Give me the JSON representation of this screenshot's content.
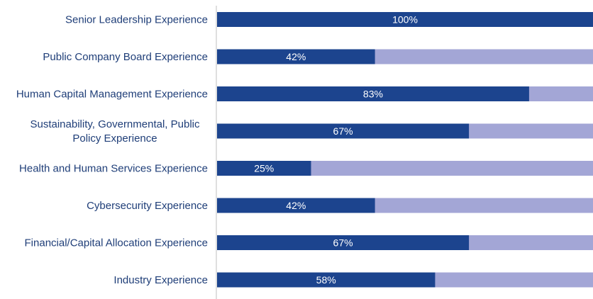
{
  "chart_data": {
    "type": "bar",
    "orientation": "horizontal",
    "stacked_to_100": true,
    "categories": [
      "Senior Leadership Experience",
      "Public Company Board Experience",
      "Human Capital Management Experience",
      "Sustainability, Governmental, Public Policy Experience",
      "Health and Human Services Experience",
      "Cybersecurity Experience",
      "Financial/Capital Allocation Experience",
      "Industry Experience"
    ],
    "category_lines": [
      [
        "Senior Leadership Experience"
      ],
      [
        "Public Company Board Experience"
      ],
      [
        "Human Capital Management Experience"
      ],
      [
        "Sustainability, Governmental, Public",
        "Policy Experience"
      ],
      [
        "Health and Human Services Experience"
      ],
      [
        "Cybersecurity Experience"
      ],
      [
        "Financial/Capital Allocation Experience"
      ],
      [
        "Industry Experience"
      ]
    ],
    "values": [
      100,
      42,
      83,
      67,
      25,
      42,
      67,
      58
    ],
    "value_labels": [
      "100%",
      "42%",
      "83%",
      "67%",
      "25%",
      "42%",
      "67%",
      "58%"
    ],
    "xlim": [
      0,
      100
    ],
    "grid": false,
    "legend": "none",
    "colors": {
      "filled": "#1c448e",
      "remainder": "#a3a6d6",
      "axis": "#bfbfbf",
      "label": "#1f3e78",
      "value_text": "#ffffff"
    }
  }
}
